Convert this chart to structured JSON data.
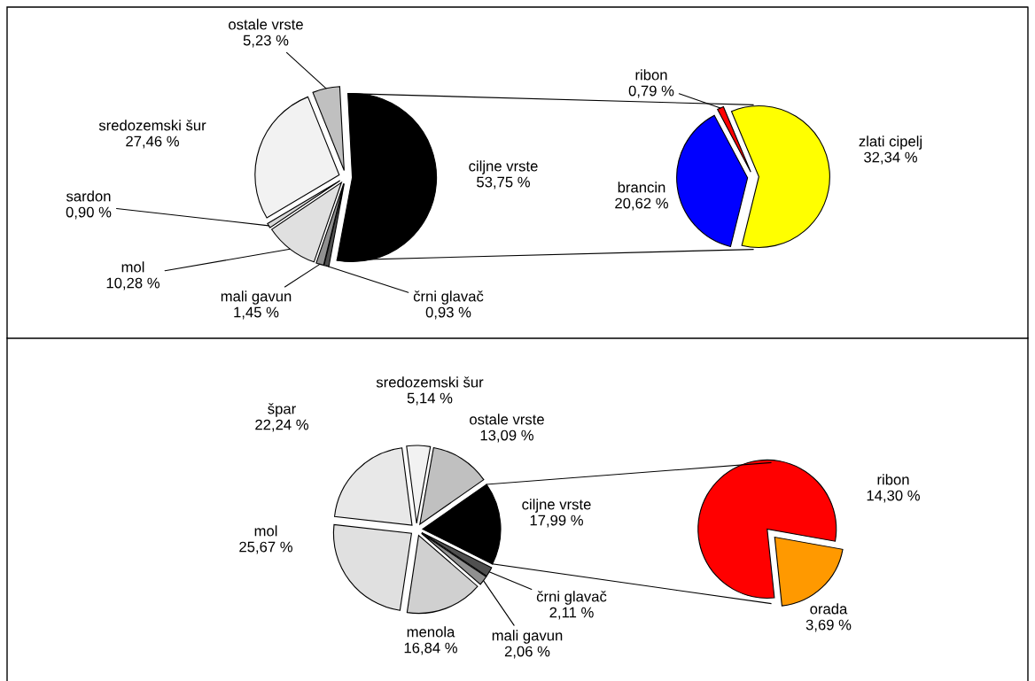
{
  "chart_data": [
    {
      "type": "pie",
      "categories": [
        "ciljne vrste",
        "črni glavač",
        "mali gavun",
        "mol",
        "sardon",
        "sredozemski šur",
        "ostale vrste"
      ],
      "values": [
        53.75,
        0.93,
        1.45,
        10.28,
        0.9,
        27.46,
        5.23
      ],
      "value_labels": [
        "53,75 %",
        "0,93 %",
        "1,45 %",
        "10,28 %",
        "0,90 %",
        "27,46 %",
        "5,23 %"
      ],
      "colors": [
        "#000000",
        "#505050",
        "#909090",
        "#e0e0e0",
        "#d8d8d8",
        "#f2f2f2",
        "#c0c0c0"
      ]
    },
    {
      "type": "pie",
      "categories": [
        "ribon",
        "zlati cipelj",
        "brancin"
      ],
      "values": [
        0.79,
        32.34,
        20.62
      ],
      "value_labels": [
        "0,79 %",
        "32,34 %",
        "20,62 %"
      ],
      "colors": [
        "#ff0000",
        "#ffff00",
        "#0000ff"
      ]
    },
    {
      "type": "pie",
      "categories": [
        "ciljne vrste",
        "črni glavač",
        "mali gavun",
        "menola",
        "mol",
        "špar",
        "sredozemski šur",
        "ostale vrste"
      ],
      "values": [
        17.99,
        2.11,
        2.06,
        16.84,
        25.67,
        22.24,
        5.14,
        13.09
      ],
      "value_labels": [
        "17,99 %",
        "2,11 %",
        "2,06 %",
        "16,84 %",
        "25,67 %",
        "22,24 %",
        "5,14 %",
        "13,09 %"
      ],
      "colors": [
        "#000000",
        "#505050",
        "#909090",
        "#d0d0d0",
        "#e0e0e0",
        "#e8e8e8",
        "#f2f2f2",
        "#c0c0c0"
      ]
    },
    {
      "type": "pie",
      "categories": [
        "ribon",
        "orada"
      ],
      "values": [
        14.3,
        3.69
      ],
      "value_labels": [
        "14,30 %",
        "3,69 %"
      ],
      "colors": [
        "#ff0000",
        "#ff9900"
      ]
    }
  ]
}
